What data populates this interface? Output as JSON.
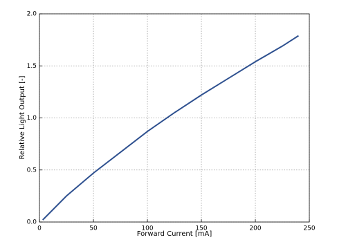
{
  "chart_data": {
    "type": "line",
    "x_label": "Forward Current [mA]",
    "y_label": "Relative Light Output [-]",
    "x": [
      3,
      25,
      50,
      75,
      100,
      125,
      150,
      175,
      200,
      225,
      240
    ],
    "series": [
      {
        "color": "#2f5190",
        "values": [
          0.02,
          0.25,
          0.47,
          0.67,
          0.87,
          1.05,
          1.22,
          1.38,
          1.54,
          1.69,
          1.79
        ]
      }
    ],
    "xlim": [
      0,
      250
    ],
    "xticks": [
      0,
      50,
      100,
      150,
      200,
      250
    ],
    "ylim": [
      0,
      2
    ],
    "yticks": [
      {
        "value": 0,
        "label": "0.0"
      },
      0.5,
      {
        "value": 1,
        "label": "1.0"
      },
      1.5,
      {
        "value": 2,
        "label": "2.0"
      }
    ],
    "grid": true
  }
}
